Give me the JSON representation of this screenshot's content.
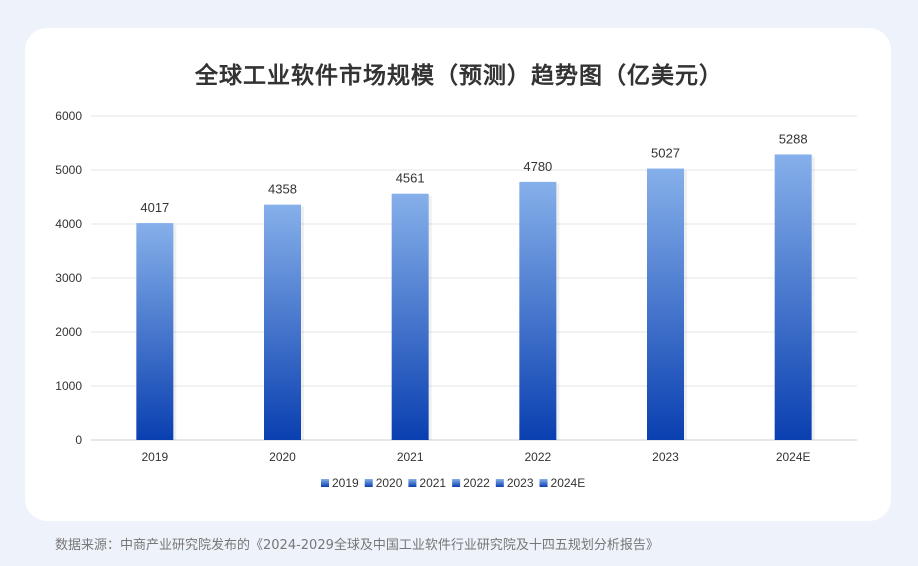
{
  "chart_data": {
    "type": "bar",
    "title": "全球工业软件市场规模（预测）趋势图（亿美元）",
    "categories": [
      "2019",
      "2020",
      "2021",
      "2022",
      "2023",
      "2024E"
    ],
    "values": [
      4017,
      4358,
      4561,
      4780,
      5027,
      5288
    ],
    "ylim": [
      0,
      6000
    ],
    "yticks": [
      0,
      1000,
      2000,
      3000,
      4000,
      5000,
      6000
    ],
    "grid": true,
    "legend": [
      "2019",
      "2020",
      "2021",
      "2022",
      "2023",
      "2024E"
    ],
    "legend_placement": "bottom",
    "colors": {
      "bar_top": "#86b0ea",
      "bar_bottom": "#0a3fb0",
      "grid": "#e6e6e6",
      "text": "#333333"
    }
  },
  "source": "数据来源：中商产业研究院发布的《2024-2029全球及中国工业软件行业研究院及十四五规划分析报告》"
}
